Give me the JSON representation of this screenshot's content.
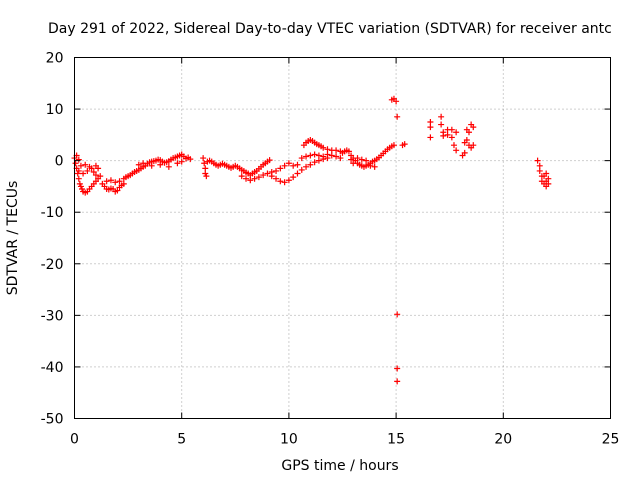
{
  "chart_data": {
    "type": "scatter",
    "title": "Day 291 of 2022, Sidereal Day-to-day VTEC variation (SDTVAR) for receiver antc",
    "xlabel": "GPS time / hours",
    "ylabel": "SDTVAR / TECUs",
    "xlim": [
      0,
      25
    ],
    "ylim": [
      -50,
      20
    ],
    "xticks": [
      0,
      5,
      10,
      15,
      20,
      25
    ],
    "yticks": [
      -50,
      -40,
      -30,
      -20,
      -10,
      0,
      10,
      20
    ],
    "grid": true,
    "marker": "+",
    "color": "#ff0000",
    "series": [
      {
        "name": "SDTVAR",
        "points": [
          [
            0.0,
            0.5
          ],
          [
            0.05,
            -0.5
          ],
          [
            0.1,
            -1.5
          ],
          [
            0.15,
            -2.5
          ],
          [
            0.2,
            -3.5
          ],
          [
            0.25,
            -4.5
          ],
          [
            0.3,
            -5.0
          ],
          [
            0.35,
            -5.5
          ],
          [
            0.4,
            -6.0
          ],
          [
            0.5,
            -6.2
          ],
          [
            0.6,
            -6.0
          ],
          [
            0.7,
            -5.5
          ],
          [
            0.8,
            -5.0
          ],
          [
            0.9,
            -4.5
          ],
          [
            1.0,
            -4.0
          ],
          [
            1.1,
            -3.5
          ],
          [
            1.2,
            -3.0
          ],
          [
            0.2,
            -2.0
          ],
          [
            0.4,
            -2.5
          ],
          [
            0.6,
            -2.0
          ],
          [
            0.8,
            -1.5
          ],
          [
            1.0,
            -1.0
          ],
          [
            1.1,
            -1.5
          ],
          [
            0.3,
            -1.0
          ],
          [
            0.5,
            -0.8
          ],
          [
            0.7,
            -1.2
          ],
          [
            0.9,
            -2.2
          ],
          [
            1.0,
            -2.8
          ],
          [
            0.1,
            1.0
          ],
          [
            0.2,
            0.2
          ],
          [
            1.3,
            -4.5
          ],
          [
            1.4,
            -5.0
          ],
          [
            1.5,
            -5.5
          ],
          [
            1.6,
            -5.6
          ],
          [
            1.7,
            -5.4
          ],
          [
            1.8,
            -5.5
          ],
          [
            1.9,
            -6.0
          ],
          [
            2.0,
            -5.8
          ],
          [
            2.1,
            -5.2
          ],
          [
            2.2,
            -4.8
          ],
          [
            2.3,
            -4.5
          ],
          [
            1.5,
            -4.0
          ],
          [
            1.7,
            -3.8
          ],
          [
            1.9,
            -4.2
          ],
          [
            2.1,
            -4.0
          ],
          [
            2.3,
            -3.5
          ],
          [
            2.4,
            -3.2
          ],
          [
            2.5,
            -3.0
          ],
          [
            2.6,
            -2.8
          ],
          [
            2.7,
            -2.5
          ],
          [
            2.8,
            -2.2
          ],
          [
            2.9,
            -2.0
          ],
          [
            3.0,
            -1.8
          ],
          [
            3.1,
            -1.5
          ],
          [
            3.2,
            -1.2
          ],
          [
            3.3,
            -1.0
          ],
          [
            3.4,
            -0.6
          ],
          [
            3.5,
            -0.3
          ],
          [
            3.6,
            -0.2
          ],
          [
            3.7,
            -0.1
          ],
          [
            3.8,
            0.0
          ],
          [
            3.9,
            0.2
          ],
          [
            4.0,
            0.1
          ],
          [
            4.1,
            -0.2
          ],
          [
            4.2,
            -0.4
          ],
          [
            4.3,
            -0.3
          ],
          [
            4.4,
            -0.1
          ],
          [
            4.5,
            0.2
          ],
          [
            4.6,
            0.5
          ],
          [
            4.7,
            0.6
          ],
          [
            4.8,
            0.8
          ],
          [
            4.9,
            1.0
          ],
          [
            5.0,
            1.2
          ],
          [
            5.1,
            0.8
          ],
          [
            5.2,
            0.4
          ],
          [
            5.3,
            0.6
          ],
          [
            5.4,
            0.3
          ],
          [
            3.2,
            -0.5
          ],
          [
            3.6,
            -1.0
          ],
          [
            4.0,
            -0.8
          ],
          [
            4.4,
            -1.2
          ],
          [
            4.8,
            -0.5
          ],
          [
            5.0,
            -0.2
          ],
          [
            3.0,
            -0.8
          ],
          [
            6.0,
            0.5
          ],
          [
            6.05,
            -0.5
          ],
          [
            6.1,
            -1.5
          ],
          [
            6.1,
            -2.5
          ],
          [
            6.15,
            -3.0
          ],
          [
            6.2,
            -0.2
          ],
          [
            6.3,
            0.0
          ],
          [
            6.4,
            -0.2
          ],
          [
            6.5,
            -0.5
          ],
          [
            6.6,
            -0.8
          ],
          [
            6.7,
            -1.0
          ],
          [
            6.8,
            -0.8
          ],
          [
            6.9,
            -0.6
          ],
          [
            7.0,
            -0.8
          ],
          [
            7.1,
            -1.0
          ],
          [
            7.2,
            -1.2
          ],
          [
            7.3,
            -1.4
          ],
          [
            7.4,
            -1.2
          ],
          [
            7.5,
            -1.0
          ],
          [
            7.6,
            -1.2
          ],
          [
            7.7,
            -1.5
          ],
          [
            7.8,
            -1.8
          ],
          [
            7.9,
            -2.0
          ],
          [
            8.0,
            -2.3
          ],
          [
            8.1,
            -2.5
          ],
          [
            8.2,
            -2.8
          ],
          [
            8.3,
            -2.5
          ],
          [
            8.4,
            -2.2
          ],
          [
            8.5,
            -2.0
          ],
          [
            8.6,
            -1.6
          ],
          [
            8.7,
            -1.2
          ],
          [
            8.8,
            -0.8
          ],
          [
            8.9,
            -0.5
          ],
          [
            9.0,
            -0.2
          ],
          [
            9.1,
            0.1
          ],
          [
            7.8,
            -3.0
          ],
          [
            8.0,
            -3.5
          ],
          [
            8.2,
            -3.8
          ],
          [
            8.4,
            -3.5
          ],
          [
            8.6,
            -3.2
          ],
          [
            8.8,
            -2.8
          ],
          [
            9.0,
            -2.5
          ],
          [
            9.2,
            -2.2
          ],
          [
            9.4,
            -2.0
          ],
          [
            9.6,
            -1.5
          ],
          [
            9.8,
            -1.0
          ],
          [
            10.0,
            -0.5
          ],
          [
            10.2,
            -1.0
          ],
          [
            10.4,
            -0.8
          ],
          [
            9.2,
            -3.0
          ],
          [
            9.4,
            -3.5
          ],
          [
            9.6,
            -4.0
          ],
          [
            9.8,
            -4.2
          ],
          [
            10.0,
            -3.8
          ],
          [
            10.2,
            -3.2
          ],
          [
            10.4,
            -2.5
          ],
          [
            10.6,
            -1.8
          ],
          [
            10.8,
            -1.2
          ],
          [
            11.0,
            -0.8
          ],
          [
            11.2,
            -0.3
          ],
          [
            11.4,
            0.0
          ],
          [
            11.6,
            0.3
          ],
          [
            11.8,
            0.5
          ],
          [
            10.6,
            0.5
          ],
          [
            10.8,
            0.8
          ],
          [
            11.0,
            1.0
          ],
          [
            11.2,
            1.2
          ],
          [
            11.4,
            1.0
          ],
          [
            11.6,
            0.8
          ],
          [
            11.8,
            1.2
          ],
          [
            12.0,
            1.0
          ],
          [
            12.2,
            0.8
          ],
          [
            12.4,
            0.5
          ],
          [
            10.7,
            3.0
          ],
          [
            10.8,
            3.5
          ],
          [
            10.9,
            3.8
          ],
          [
            11.0,
            4.0
          ],
          [
            11.1,
            3.8
          ],
          [
            11.2,
            3.5
          ],
          [
            11.3,
            3.2
          ],
          [
            11.4,
            3.0
          ],
          [
            11.5,
            2.8
          ],
          [
            11.6,
            2.5
          ],
          [
            11.8,
            2.2
          ],
          [
            12.0,
            2.0
          ],
          [
            12.2,
            2.0
          ],
          [
            12.4,
            1.8
          ],
          [
            12.5,
            1.5
          ],
          [
            12.6,
            1.8
          ],
          [
            12.7,
            2.0
          ],
          [
            12.8,
            1.8
          ],
          [
            12.9,
            1.0
          ],
          [
            13.0,
            0.5
          ],
          [
            13.1,
            0.0
          ],
          [
            13.2,
            -0.5
          ],
          [
            13.3,
            -0.8
          ],
          [
            13.4,
            -1.0
          ],
          [
            13.5,
            -1.2
          ],
          [
            13.6,
            -1.0
          ],
          [
            13.7,
            -0.8
          ],
          [
            13.8,
            -0.5
          ],
          [
            13.9,
            -0.2
          ],
          [
            14.0,
            0.0
          ],
          [
            14.1,
            0.3
          ],
          [
            14.2,
            0.6
          ],
          [
            14.3,
            1.0
          ],
          [
            14.4,
            1.4
          ],
          [
            14.5,
            1.8
          ],
          [
            14.6,
            2.2
          ],
          [
            14.7,
            2.5
          ],
          [
            14.8,
            2.8
          ],
          [
            14.9,
            3.0
          ],
          [
            13.2,
            0.5
          ],
          [
            13.4,
            0.2
          ],
          [
            13.6,
            0.0
          ],
          [
            13.8,
            -1.0
          ],
          [
            14.0,
            -1.2
          ],
          [
            12.9,
            0.2
          ],
          [
            13.0,
            -0.5
          ],
          [
            14.8,
            11.8
          ],
          [
            14.9,
            12.0
          ],
          [
            15.0,
            11.5
          ],
          [
            15.05,
            8.5
          ],
          [
            15.05,
            -29.8
          ],
          [
            15.05,
            -40.3
          ],
          [
            15.05,
            -42.8
          ],
          [
            15.3,
            3.0
          ],
          [
            15.4,
            3.2
          ],
          [
            16.6,
            7.5
          ],
          [
            16.6,
            6.5
          ],
          [
            16.6,
            4.5
          ],
          [
            17.1,
            8.5
          ],
          [
            17.1,
            7.0
          ],
          [
            17.2,
            5.5
          ],
          [
            17.2,
            4.8
          ],
          [
            17.4,
            6.0
          ],
          [
            17.4,
            5.0
          ],
          [
            17.6,
            6.0
          ],
          [
            17.6,
            4.5
          ],
          [
            17.7,
            3.0
          ],
          [
            17.8,
            2.0
          ],
          [
            17.8,
            5.5
          ],
          [
            18.1,
            1.0
          ],
          [
            18.2,
            1.5
          ],
          [
            18.3,
            4.0
          ],
          [
            18.3,
            6.0
          ],
          [
            18.4,
            3.0
          ],
          [
            18.4,
            5.5
          ],
          [
            18.5,
            7.0
          ],
          [
            18.5,
            2.5
          ],
          [
            18.6,
            6.5
          ],
          [
            18.6,
            3.0
          ],
          [
            18.2,
            3.5
          ],
          [
            21.6,
            0.0
          ],
          [
            21.7,
            -1.0
          ],
          [
            21.7,
            -2.0
          ],
          [
            21.8,
            -3.0
          ],
          [
            21.8,
            -4.0
          ],
          [
            21.9,
            -4.5
          ],
          [
            22.0,
            -5.0
          ],
          [
            22.1,
            -4.5
          ],
          [
            22.1,
            -3.5
          ],
          [
            21.9,
            -3.0
          ],
          [
            22.0,
            -2.5
          ],
          [
            22.0,
            -4.0
          ]
        ]
      }
    ]
  }
}
